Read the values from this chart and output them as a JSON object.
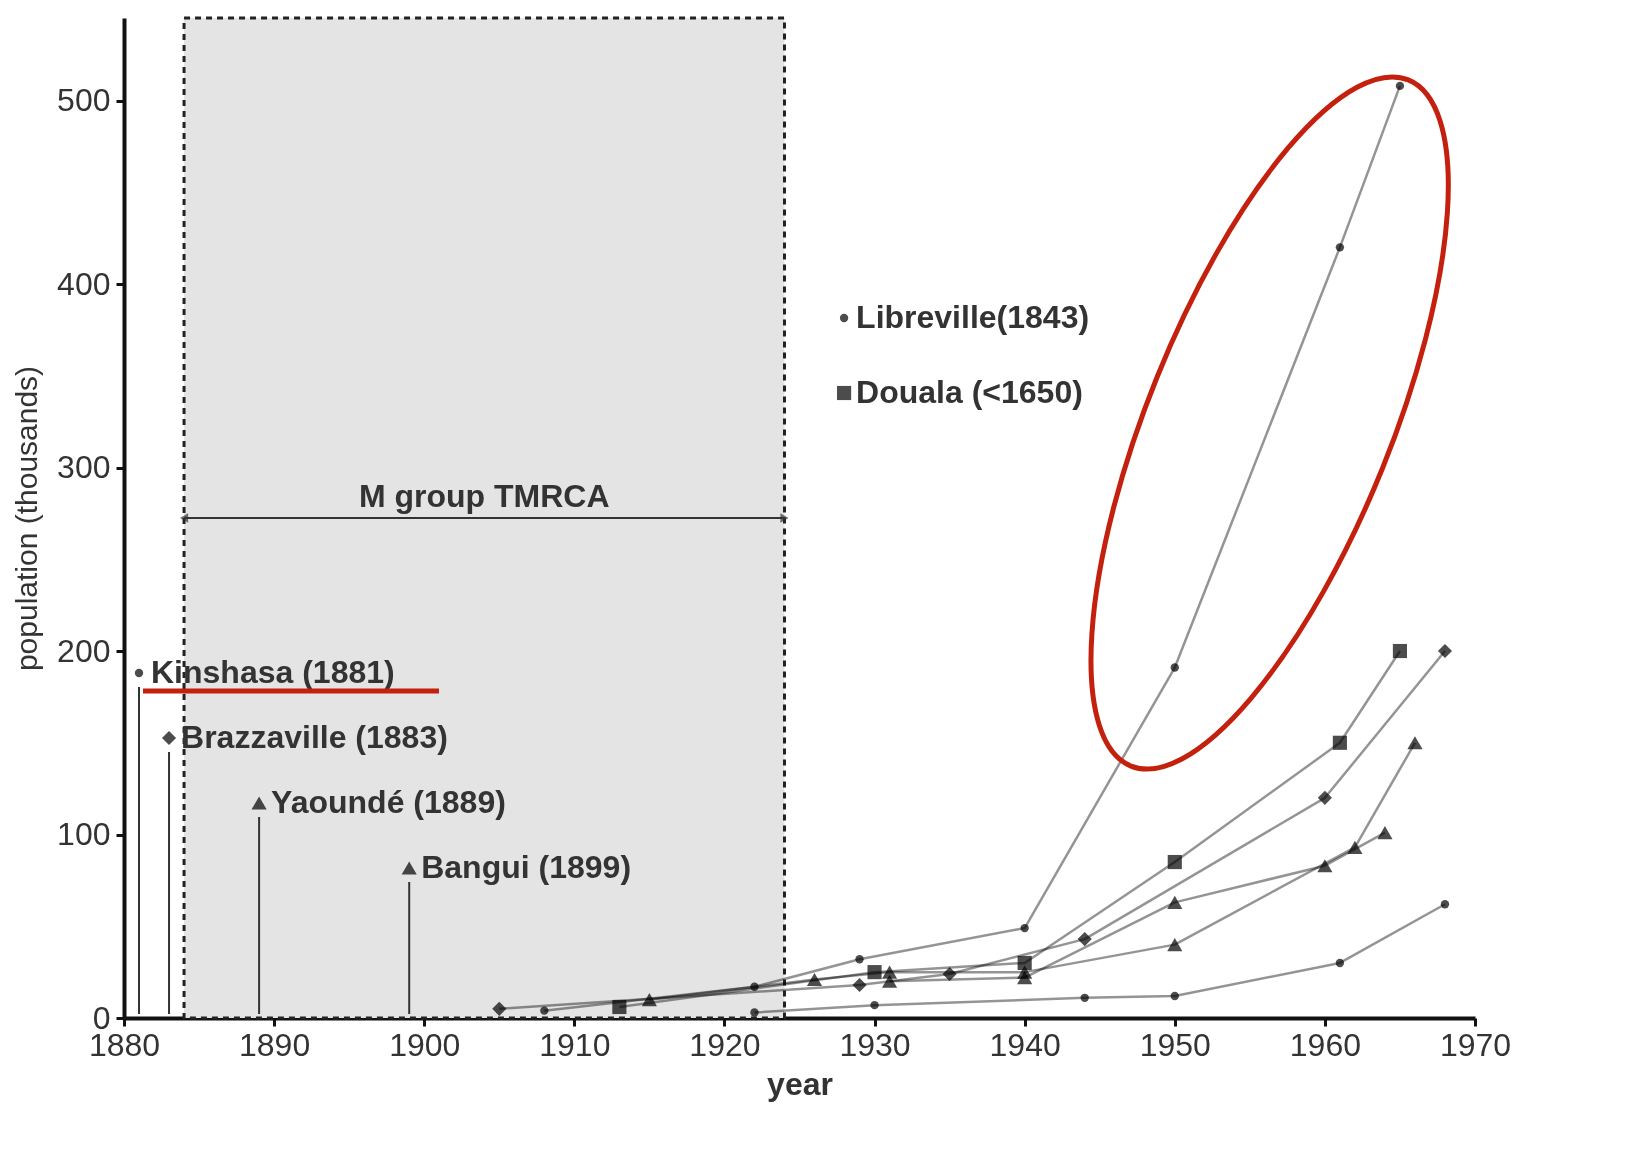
{
  "chart_data": {
    "type": "line",
    "xlabel": "year",
    "ylabel": "population (thousands)",
    "xlim": [
      1880,
      1970
    ],
    "ylim": [
      0,
      545
    ],
    "xticks": [
      1880,
      1890,
      1900,
      1910,
      1920,
      1930,
      1940,
      1950,
      1960,
      1970
    ],
    "yticks": [
      0,
      100,
      200,
      300,
      400,
      500
    ],
    "grid": false,
    "legend": "left",
    "series": [
      {
        "name": "Kinshasa (1881)",
        "color": "#000000",
        "marker": "circle",
        "x": [
          1908,
          1922,
          1929,
          1940,
          1950,
          1961,
          1965
        ],
        "values": [
          4,
          17,
          32,
          49,
          191,
          420,
          508
        ]
      },
      {
        "name": "Brazzaville (1883)",
        "color": "#000000",
        "marker": "diamond",
        "x": [
          1905,
          1929,
          1935,
          1944,
          1960,
          1968
        ],
        "values": [
          5,
          18,
          24,
          43,
          120,
          200
        ]
      },
      {
        "name": "Yaoundé (1889)",
        "color": "#000000",
        "marker": "triangle",
        "x": [
          1915,
          1926,
          1931,
          1940,
          1950,
          1962,
          1966
        ],
        "values": [
          10,
          21,
          25,
          25,
          40,
          93,
          150
        ]
      },
      {
        "name": "Bangui (1899)",
        "color": "#000000",
        "marker": "triangle",
        "x": [
          1931,
          1940,
          1950,
          1960,
          1964
        ],
        "values": [
          20,
          22,
          63,
          83,
          101
        ]
      },
      {
        "name": "Libreville(1843)",
        "color": "#000000",
        "marker": "circle",
        "x": [
          1922,
          1930,
          1944,
          1950,
          1961,
          1968
        ],
        "values": [
          3,
          7,
          11,
          12,
          30,
          62
        ]
      },
      {
        "name": "Douala (<1650)",
        "color": "#000000",
        "marker": "square",
        "x": [
          1913,
          1930,
          1940,
          1950,
          1961,
          1965
        ],
        "values": [
          6,
          25,
          30,
          85,
          150,
          200
        ]
      }
    ],
    "bands": [
      {
        "axis": "x",
        "from": 1884,
        "to": 1924,
        "label": "M group TMRCA",
        "color": "#e4e4e4"
      }
    ],
    "ref_lines": [
      {
        "axis": "x",
        "value": 1881
      },
      {
        "axis": "x",
        "value": 1883
      },
      {
        "axis": "x",
        "value": 1889
      },
      {
        "axis": "x",
        "value": 1899
      }
    ]
  }
}
